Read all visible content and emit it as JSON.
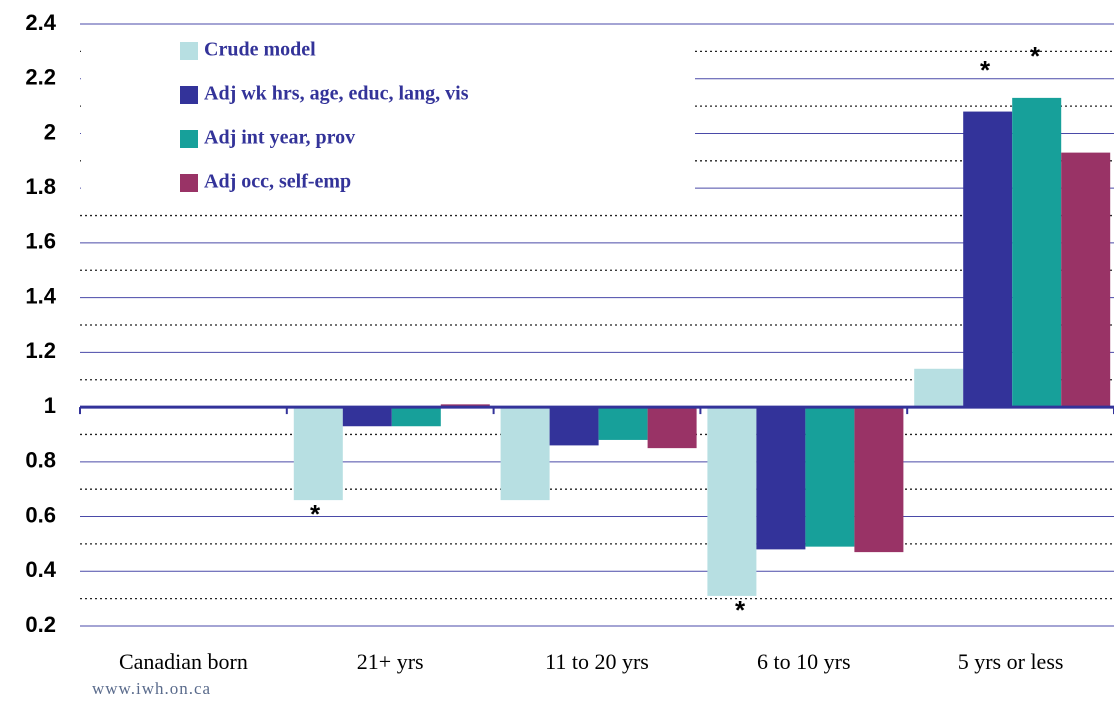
{
  "chart_data": {
    "type": "bar",
    "categories": [
      "Canadian born",
      "21+ yrs",
      "11 to 20 yrs",
      "6 to 10 yrs",
      "5 yrs or less"
    ],
    "series": [
      {
        "name": "Crude model",
        "color": "#b7dfe2",
        "values": [
          1,
          0.66,
          0.66,
          0.31,
          1.14
        ]
      },
      {
        "name": "Adj wk hrs, age, educ, lang, vis",
        "color": "#33339a",
        "values": [
          1,
          0.93,
          0.86,
          0.48,
          2.08
        ]
      },
      {
        "name": "Adj int year, prov",
        "color": "#17a09a",
        "values": [
          1,
          0.93,
          0.88,
          0.49,
          2.13
        ]
      },
      {
        "name": "Adj occ, self-emp",
        "color": "#993366",
        "values": [
          1,
          1.01,
          0.85,
          0.47,
          1.93
        ]
      }
    ],
    "baseline": 1,
    "ylim": [
      0.2,
      2.4
    ],
    "yticks": [
      0.2,
      0.4,
      0.6,
      0.8,
      1,
      1.2,
      1.4,
      1.6,
      1.8,
      2,
      2.2,
      2.4
    ],
    "minor_yticks": [
      0.3,
      0.5,
      0.7,
      0.9,
      1.1,
      1.3,
      1.5,
      1.7,
      1.9,
      2.1,
      2.3
    ],
    "grid": true,
    "legend": "top-left",
    "annotations": [
      "*",
      "*",
      "*",
      "*"
    ],
    "footer": "www.iwh.on.ca"
  }
}
